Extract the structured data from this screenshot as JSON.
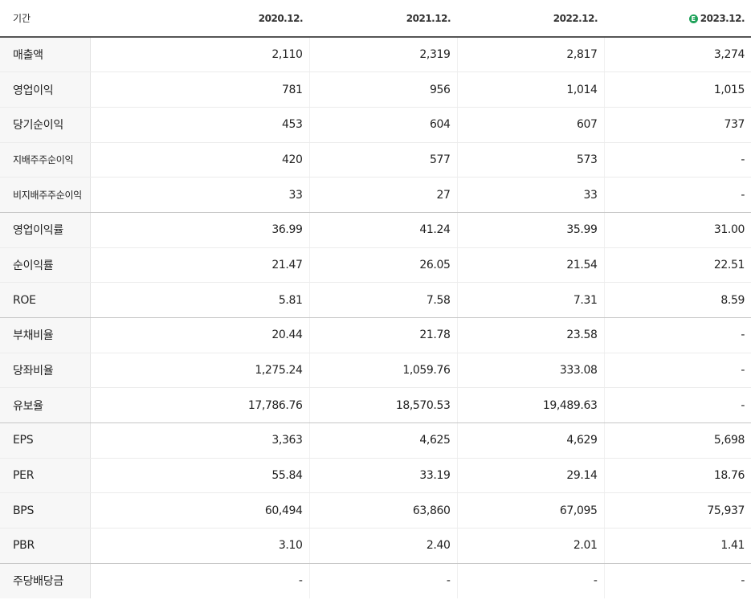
{
  "header": {
    "period_label": "기간",
    "periods": [
      "2020.12.",
      "2021.12.",
      "2022.12.",
      "2023.12."
    ],
    "estimate_badge": "E"
  },
  "rows": [
    {
      "label": "매출액",
      "values": [
        "2,110",
        "2,319",
        "2,817",
        "3,274"
      ]
    },
    {
      "label": "영업이익",
      "values": [
        "781",
        "956",
        "1,014",
        "1,015"
      ]
    },
    {
      "label": "당기순이익",
      "values": [
        "453",
        "604",
        "607",
        "737"
      ]
    },
    {
      "label": "지배주주순이익",
      "values": [
        "420",
        "577",
        "573",
        "-"
      ]
    },
    {
      "label": "비지배주주순이익",
      "values": [
        "33",
        "27",
        "33",
        "-"
      ]
    },
    {
      "label": "영업이익률",
      "values": [
        "36.99",
        "41.24",
        "35.99",
        "31.00"
      ]
    },
    {
      "label": "순이익률",
      "values": [
        "21.47",
        "26.05",
        "21.54",
        "22.51"
      ]
    },
    {
      "label": "ROE",
      "values": [
        "5.81",
        "7.58",
        "7.31",
        "8.59"
      ]
    },
    {
      "label": "부채비율",
      "values": [
        "20.44",
        "21.78",
        "23.58",
        "-"
      ]
    },
    {
      "label": "당좌비율",
      "values": [
        "1,275.24",
        "1,059.76",
        "333.08",
        "-"
      ]
    },
    {
      "label": "유보율",
      "values": [
        "17,786.76",
        "18,570.53",
        "19,489.63",
        "-"
      ]
    },
    {
      "label": "EPS",
      "values": [
        "3,363",
        "4,625",
        "4,629",
        "5,698"
      ]
    },
    {
      "label": "PER",
      "values": [
        "55.84",
        "33.19",
        "29.14",
        "18.76"
      ]
    },
    {
      "label": "BPS",
      "values": [
        "60,494",
        "63,860",
        "67,095",
        "75,937"
      ]
    },
    {
      "label": "PBR",
      "values": [
        "3.10",
        "2.40",
        "2.01",
        "1.41"
      ]
    },
    {
      "label": "주당배당금",
      "values": [
        "-",
        "-",
        "-",
        "-"
      ]
    }
  ]
}
